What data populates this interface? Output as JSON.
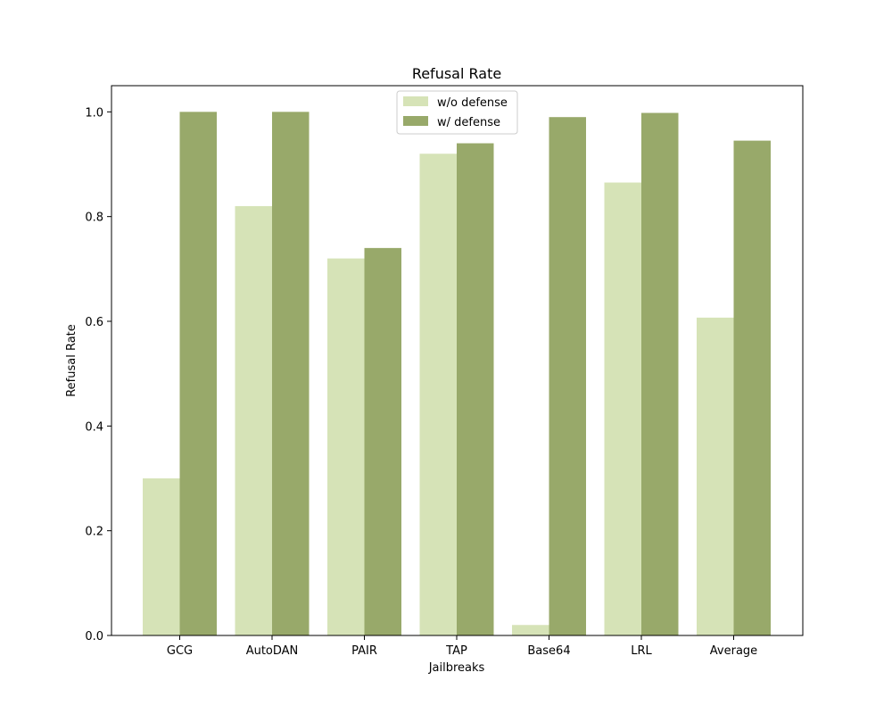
{
  "chart_data": {
    "type": "bar",
    "title": "Refusal Rate",
    "xlabel": "Jailbreaks",
    "ylabel": "Refusal Rate",
    "categories": [
      "GCG",
      "AutoDAN",
      "PAIR",
      "TAP",
      "Base64",
      "LRL",
      "Average"
    ],
    "series": [
      {
        "name": "w/o defense",
        "color": "#d6e3b7",
        "values": [
          0.3,
          0.82,
          0.72,
          0.92,
          0.02,
          0.865,
          0.607
        ]
      },
      {
        "name": "w/ defense",
        "color": "#98a96a",
        "values": [
          1.0,
          1.0,
          0.74,
          0.94,
          0.99,
          0.998,
          0.945
        ]
      }
    ],
    "ylim": [
      0,
      1.05
    ],
    "yticks": [
      "0.0",
      "0.2",
      "0.4",
      "0.6",
      "0.8",
      "1.0"
    ],
    "grid": false,
    "legend_position": "top-center"
  }
}
